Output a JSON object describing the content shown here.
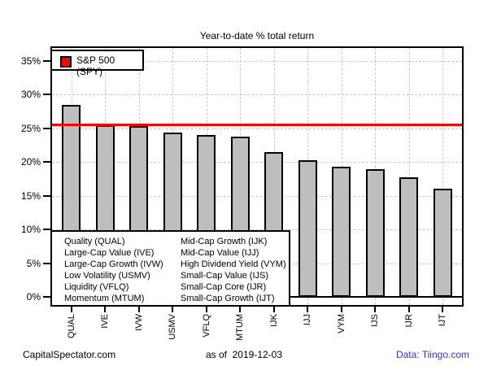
{
  "title": "Year-to-date % total return",
  "legend": {
    "label": "S&P 500 (SPY)",
    "swatch_color": "#ff0000"
  },
  "fund_key": {
    "column1": [
      "Quality (QUAL)",
      "Large-Cap Value (IVE)",
      "Large-Cap Growth (IVW)",
      "Low Volatility (USMV)",
      "Liquidity (VFLQ)",
      "Momentum (MTUM)"
    ],
    "column2": [
      "Mid-Cap Growth (IJK)",
      "Mid-Cap Value (IJJ)",
      "High Dividend Yield (VYM)",
      "Small-Cap Value (IJS)",
      "Small-Cap Core (IJR)",
      "Small-Cap Growth (IJT)"
    ]
  },
  "footer": {
    "left": "CapitalSpectator.com",
    "center": "as of  2019-12-03",
    "right": "Data: Tiingo.com"
  },
  "colors": {
    "bar": "#bebebe",
    "bar_border": "#000000",
    "reference_line": "#ff0000",
    "grid": "#c8c8c8",
    "footer_link": "#3333cc"
  },
  "chart_data": {
    "type": "bar",
    "title": "Year-to-date % total return",
    "categories": [
      "QUAL",
      "IVE",
      "IVW",
      "USMV",
      "VFLQ",
      "MTUM",
      "IJK",
      "IJJ",
      "VYM",
      "IJS",
      "IJR",
      "IJT"
    ],
    "values": [
      28.5,
      25.5,
      25.4,
      24.4,
      24.0,
      23.8,
      21.5,
      20.3,
      19.3,
      18.9,
      17.7,
      16.1
    ],
    "reference_line": {
      "name": "S&P 500 (SPY)",
      "value": 25.6
    },
    "xlabel": "",
    "ylabel": "",
    "ylim": [
      0,
      36.8
    ],
    "ytick_values": [
      0,
      5,
      10,
      15,
      20,
      25,
      30,
      35
    ],
    "yticks": [
      "0%",
      "5%",
      "10%",
      "15%",
      "20%",
      "25%",
      "30%",
      "35%"
    ],
    "grid": "dashed",
    "legend_position": "top-left",
    "x_tick_labels_rotated": true
  }
}
